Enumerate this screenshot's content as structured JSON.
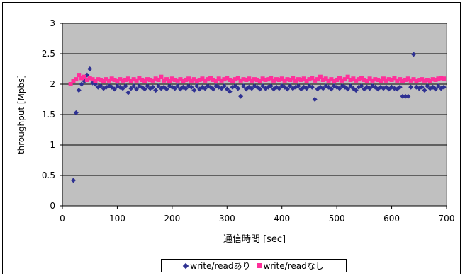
{
  "chart_data": {
    "type": "scatter",
    "title": "",
    "xlabel": "通信時間 [sec]",
    "ylabel": "throughput [Mpbs]",
    "xlim": [
      0,
      700
    ],
    "ylim": [
      0,
      3
    ],
    "x_ticks": [
      "0",
      "100",
      "200",
      "300",
      "400",
      "500",
      "600",
      "700"
    ],
    "y_ticks": [
      "0",
      "0.5",
      "1",
      "1.5",
      "2",
      "2.5",
      "3"
    ],
    "grid": "horizontal",
    "legend_position": "bottom",
    "plot_background": "#c0c0c0",
    "series": [
      {
        "name": "write/readあり",
        "color": "#2e3192",
        "marker": "diamond",
        "x": [
          20,
          25,
          30,
          35,
          40,
          45,
          50,
          55,
          60,
          65,
          70,
          75,
          80,
          85,
          90,
          95,
          100,
          105,
          110,
          115,
          120,
          125,
          130,
          135,
          140,
          145,
          150,
          155,
          160,
          165,
          170,
          175,
          180,
          185,
          190,
          195,
          200,
          205,
          210,
          215,
          220,
          225,
          230,
          235,
          240,
          245,
          250,
          255,
          260,
          265,
          270,
          275,
          280,
          285,
          290,
          295,
          300,
          305,
          310,
          315,
          320,
          325,
          330,
          335,
          340,
          345,
          350,
          355,
          360,
          365,
          370,
          375,
          380,
          385,
          390,
          395,
          400,
          405,
          410,
          415,
          420,
          425,
          430,
          435,
          440,
          445,
          450,
          455,
          460,
          465,
          470,
          475,
          480,
          485,
          490,
          495,
          500,
          505,
          510,
          515,
          520,
          525,
          530,
          535,
          540,
          545,
          550,
          555,
          560,
          565,
          570,
          575,
          580,
          585,
          590,
          595,
          600,
          605,
          610,
          615,
          620,
          625,
          630,
          635,
          640,
          645,
          650,
          655,
          660,
          665,
          670,
          675,
          680,
          685,
          690,
          695
        ],
        "values": [
          0.42,
          1.53,
          1.9,
          2.0,
          2.05,
          2.15,
          2.25,
          2.02,
          2.0,
          1.95,
          1.97,
          1.93,
          1.95,
          1.97,
          1.95,
          1.92,
          1.97,
          1.95,
          1.93,
          1.97,
          1.86,
          1.93,
          1.97,
          1.92,
          1.97,
          1.95,
          1.92,
          1.97,
          1.93,
          1.95,
          1.9,
          1.97,
          1.93,
          1.95,
          1.92,
          1.97,
          1.95,
          1.93,
          1.97,
          1.92,
          1.95,
          1.93,
          1.97,
          1.95,
          1.9,
          1.97,
          1.92,
          1.95,
          1.93,
          1.97,
          1.95,
          1.92,
          1.97,
          1.95,
          1.93,
          1.97,
          1.92,
          1.88,
          1.95,
          1.97,
          1.93,
          1.8,
          1.97,
          1.92,
          1.95,
          1.93,
          1.97,
          1.95,
          1.92,
          1.97,
          1.93,
          1.95,
          1.97,
          1.92,
          1.95,
          1.93,
          1.97,
          1.95,
          1.92,
          1.97,
          1.93,
          1.95,
          1.97,
          1.92,
          1.95,
          1.93,
          1.97,
          1.95,
          1.75,
          1.92,
          1.95,
          1.93,
          1.97,
          1.95,
          1.92,
          1.97,
          1.95,
          1.93,
          1.97,
          1.95,
          1.92,
          1.97,
          1.93,
          1.9,
          1.95,
          1.97,
          1.92,
          1.95,
          1.93,
          1.97,
          1.95,
          1.92,
          1.95,
          1.93,
          1.95,
          1.92,
          1.95,
          1.93,
          1.92,
          1.95,
          1.8,
          1.8,
          1.8,
          1.95,
          2.49,
          1.95,
          1.93,
          1.95,
          1.9,
          1.97,
          1.93,
          1.95,
          1.92,
          1.97,
          1.93,
          1.95
        ]
      },
      {
        "name": "write/readなし",
        "color": "#ff2f9a",
        "marker": "square",
        "x": [
          15,
          20,
          25,
          30,
          35,
          40,
          45,
          50,
          55,
          60,
          65,
          70,
          75,
          80,
          85,
          90,
          95,
          100,
          105,
          110,
          115,
          120,
          125,
          130,
          135,
          140,
          145,
          150,
          155,
          160,
          165,
          170,
          175,
          180,
          185,
          190,
          195,
          200,
          205,
          210,
          215,
          220,
          225,
          230,
          235,
          240,
          245,
          250,
          255,
          260,
          265,
          270,
          275,
          280,
          285,
          290,
          295,
          300,
          305,
          310,
          315,
          320,
          325,
          330,
          335,
          340,
          345,
          350,
          355,
          360,
          365,
          370,
          375,
          380,
          385,
          390,
          395,
          400,
          405,
          410,
          415,
          420,
          425,
          430,
          435,
          440,
          445,
          450,
          455,
          460,
          465,
          470,
          475,
          480,
          485,
          490,
          495,
          500,
          505,
          510,
          515,
          520,
          525,
          530,
          535,
          540,
          545,
          550,
          555,
          560,
          565,
          570,
          575,
          580,
          585,
          590,
          595,
          600,
          605,
          610,
          615,
          620,
          625,
          630,
          635,
          640,
          645,
          650,
          655,
          660,
          665,
          670,
          675,
          680,
          685,
          690,
          695
        ],
        "values": [
          2.0,
          2.05,
          2.08,
          2.15,
          2.1,
          2.12,
          2.07,
          2.1,
          2.08,
          2.05,
          2.08,
          2.07,
          2.05,
          2.08,
          2.06,
          2.09,
          2.07,
          2.05,
          2.08,
          2.06,
          2.07,
          2.09,
          2.05,
          2.08,
          2.06,
          2.1,
          2.07,
          2.05,
          2.08,
          2.07,
          2.06,
          2.09,
          2.07,
          2.12,
          2.06,
          2.08,
          2.05,
          2.09,
          2.07,
          2.06,
          2.08,
          2.05,
          2.07,
          2.09,
          2.06,
          2.08,
          2.05,
          2.07,
          2.09,
          2.06,
          2.08,
          2.1,
          2.07,
          2.05,
          2.09,
          2.06,
          2.08,
          2.1,
          2.07,
          2.05,
          2.08,
          2.1,
          2.06,
          2.08,
          2.07,
          2.09,
          2.06,
          2.08,
          2.07,
          2.05,
          2.09,
          2.07,
          2.08,
          2.1,
          2.06,
          2.08,
          2.07,
          2.09,
          2.06,
          2.08,
          2.07,
          2.1,
          2.06,
          2.08,
          2.07,
          2.09,
          2.05,
          2.08,
          2.1,
          2.06,
          2.08,
          2.12,
          2.07,
          2.09,
          2.06,
          2.08,
          2.05,
          2.07,
          2.1,
          2.06,
          2.08,
          2.12,
          2.07,
          2.09,
          2.06,
          2.08,
          2.1,
          2.07,
          2.05,
          2.09,
          2.06,
          2.08,
          2.07,
          2.05,
          2.09,
          2.06,
          2.08,
          2.07,
          2.1,
          2.06,
          2.08,
          2.05,
          2.07,
          2.09,
          2.06,
          2.08,
          2.05,
          2.07,
          2.08,
          2.06,
          2.07,
          2.05,
          2.08,
          2.07,
          2.09,
          2.1,
          2.09
        ]
      }
    ]
  }
}
